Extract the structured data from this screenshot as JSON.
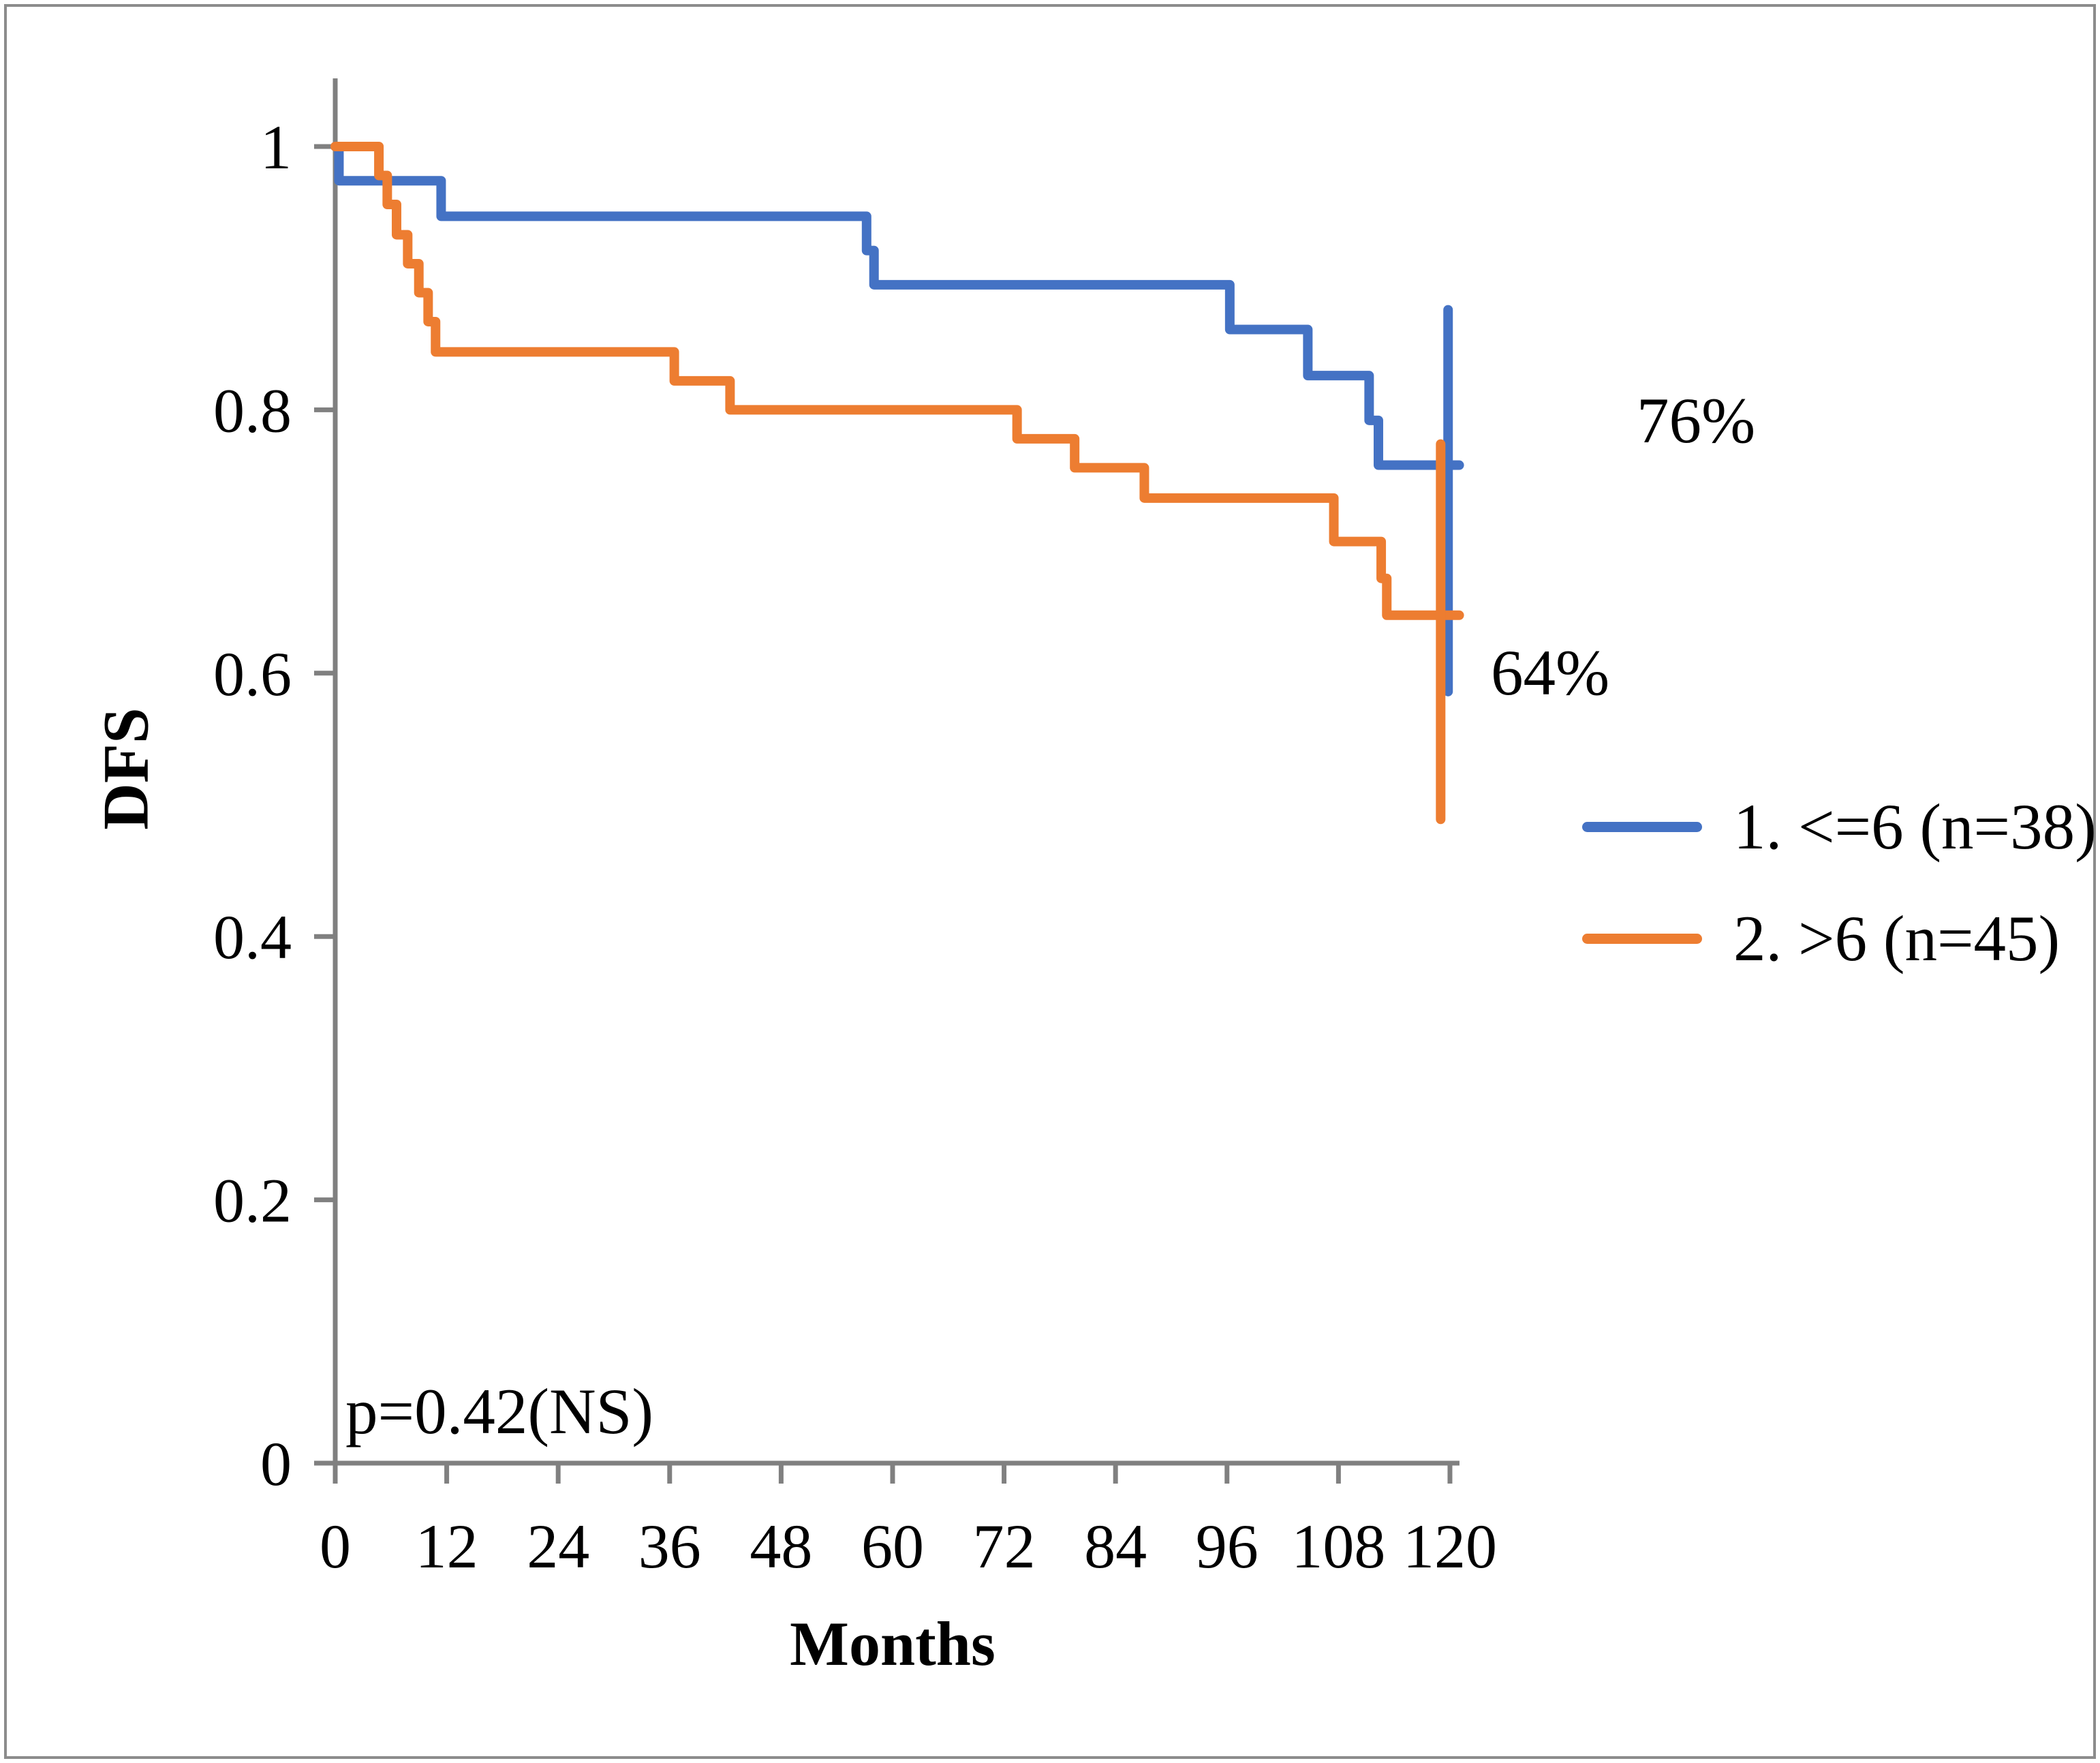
{
  "figure": {
    "background": "#ffffff",
    "border_color": "#8c8c8c"
  },
  "chart_data": {
    "type": "line",
    "subtype": "kaplan-meier-step-curves",
    "title": "",
    "xlabel": "Months",
    "ylabel": "DFS",
    "xlim": [
      0,
      120
    ],
    "ylim": [
      0,
      1
    ],
    "x_ticks": [
      0,
      12,
      24,
      36,
      48,
      60,
      72,
      84,
      96,
      108,
      120
    ],
    "y_ticks": [
      0,
      0.2,
      0.4,
      0.6,
      0.8,
      1
    ],
    "y_tick_labels": [
      "0",
      "0.2",
      "0.4",
      "0.6",
      "0.8",
      "1"
    ],
    "grid": false,
    "legend_position": "right",
    "axis_color": "#808080",
    "text_color": "#000000",
    "series": [
      {
        "name": "1. <=6 (n=38)",
        "color": "#4472C4",
        "final_value": 0.758,
        "end_label": "76%",
        "step_points": [
          [
            0,
            1
          ],
          [
            0.4,
            1
          ],
          [
            0.4,
            0.974
          ],
          [
            11.4,
            0.974
          ],
          [
            11.4,
            0.947
          ],
          [
            57.2,
            0.947
          ],
          [
            57.2,
            0.921
          ],
          [
            58,
            0.921
          ],
          [
            58,
            0.895
          ],
          [
            96.3,
            0.895
          ],
          [
            96.3,
            0.861
          ],
          [
            104.7,
            0.861
          ],
          [
            104.7,
            0.826
          ],
          [
            111.3,
            0.826
          ],
          [
            111.3,
            0.792
          ],
          [
            112.3,
            0.792
          ],
          [
            112.3,
            0.758
          ],
          [
            121,
            0.758
          ]
        ],
        "error_bar": {
          "x": 119.8,
          "low": 0.586,
          "high": 0.876
        }
      },
      {
        "name": "2. >6 (n=45)",
        "color": "#ED7D31",
        "final_value": 0.644,
        "end_label": "64%",
        "step_points": [
          [
            0,
            1
          ],
          [
            4.7,
            1
          ],
          [
            4.7,
            0.978
          ],
          [
            5.6,
            0.978
          ],
          [
            5.6,
            0.956
          ],
          [
            6.6,
            0.956
          ],
          [
            6.6,
            0.933
          ],
          [
            7.8,
            0.933
          ],
          [
            7.8,
            0.911
          ],
          [
            9,
            0.911
          ],
          [
            9,
            0.889
          ],
          [
            10,
            0.889
          ],
          [
            10,
            0.867
          ],
          [
            10.8,
            0.867
          ],
          [
            10.8,
            0.844
          ],
          [
            36.5,
            0.844
          ],
          [
            36.5,
            0.822
          ],
          [
            42.5,
            0.822
          ],
          [
            42.5,
            0.8
          ],
          [
            73.4,
            0.8
          ],
          [
            73.4,
            0.778
          ],
          [
            79.6,
            0.778
          ],
          [
            79.6,
            0.756
          ],
          [
            87.1,
            0.756
          ],
          [
            87.1,
            0.733
          ],
          [
            107.5,
            0.733
          ],
          [
            107.5,
            0.7
          ],
          [
            112.6,
            0.7
          ],
          [
            112.6,
            0.672
          ],
          [
            113.2,
            0.672
          ],
          [
            113.2,
            0.644
          ],
          [
            121,
            0.644
          ]
        ],
        "error_bar": {
          "x": 119.0,
          "low": 0.489,
          "high": 0.774
        }
      }
    ],
    "annotations": {
      "p_value": {
        "text": "p=0.42(NS)",
        "x_months": 1,
        "y_dfs": 0.04
      },
      "blue_end_label": {
        "text": "76%",
        "x_months": 146,
        "y_dfs": 0.79
      },
      "orange_end_label": {
        "text": "64%",
        "x_months": 132,
        "y_dfs": 0.59
      }
    }
  }
}
